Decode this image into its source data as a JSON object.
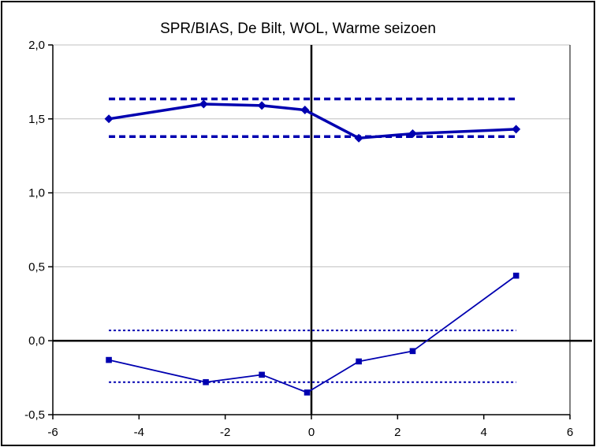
{
  "chart_data": {
    "type": "line",
    "title": "SPR/BIAS, De Bilt, WOL, Warme seizoen",
    "xlabel": "",
    "ylabel": "",
    "xlim": [
      -6,
      6
    ],
    "ylim": [
      -0.5,
      2.0
    ],
    "xticks": [
      -6,
      -4,
      -2,
      0,
      2,
      4,
      6
    ],
    "xtick_labels": [
      "-6",
      "-4",
      "-2",
      "0",
      "2",
      "4",
      "6"
    ],
    "yticks": [
      -0.5,
      0.0,
      0.5,
      1.0,
      1.5,
      2.0
    ],
    "ytick_labels": [
      "-0,5",
      "0,0",
      "0,5",
      "1,0",
      "1,5",
      "2,0"
    ],
    "grid": "horizontal",
    "series": [
      {
        "marker": "diamond",
        "color": "#0000b0",
        "x": [
          -4.7,
          -2.5,
          -1.15,
          -0.15,
          1.1,
          2.35,
          4.75
        ],
        "y": [
          1.5,
          1.6,
          1.59,
          1.56,
          1.37,
          1.4,
          1.43
        ]
      },
      {
        "marker": "square",
        "color": "#0000b0",
        "x": [
          -4.7,
          -2.45,
          -1.15,
          -0.1,
          1.1,
          2.35,
          4.75
        ],
        "y": [
          -0.13,
          -0.28,
          -0.23,
          -0.35,
          -0.14,
          -0.07,
          0.44
        ]
      }
    ],
    "reference_lines": [
      {
        "y": 1.635,
        "x_from": -4.7,
        "x_to": 4.75,
        "style": "dashed-thick"
      },
      {
        "y": 1.38,
        "x_from": -4.7,
        "x_to": 4.75,
        "style": "dashed-thick"
      },
      {
        "y": 0.07,
        "x_from": -4.7,
        "x_to": 4.75,
        "style": "dotted-thin"
      },
      {
        "y": -0.28,
        "x_from": -4.7,
        "x_to": 4.75,
        "style": "dotted-thin"
      }
    ]
  }
}
